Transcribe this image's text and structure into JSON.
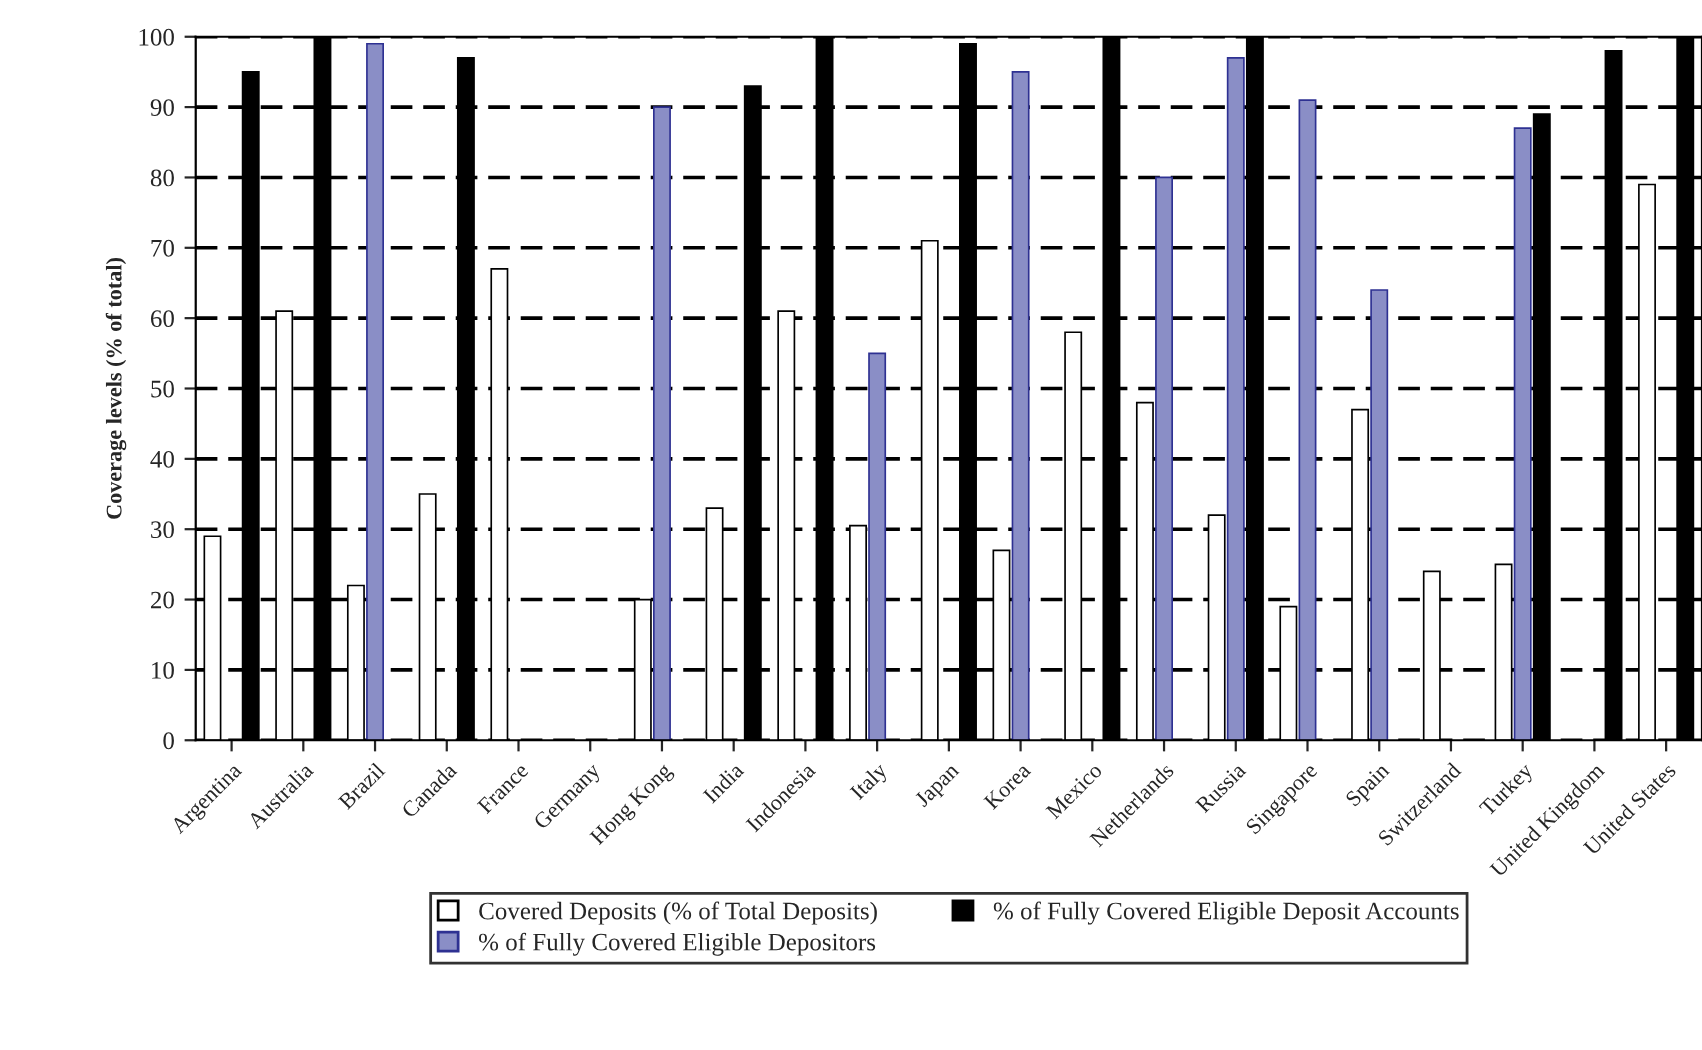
{
  "chart_data": {
    "type": "bar",
    "ylabel": "Coverage levels (% of total)",
    "categories": [
      "Argentina",
      "Australia",
      "Brazil",
      "Canada",
      "France",
      "Germany",
      "Hong Kong",
      "India",
      "Indonesia",
      "Italy",
      "Japan",
      "Korea",
      "Mexico",
      "Netherlands",
      "Russia",
      "Singapore",
      "Spain",
      "Switzerland",
      "Turkey",
      "United Kingdom",
      "United States"
    ],
    "series": [
      {
        "name": "Covered Deposits (% of Total Deposits)",
        "color": "#ffffff",
        "values": [
          29,
          61,
          22,
          35,
          67,
          null,
          20,
          33,
          61,
          30.5,
          71,
          27,
          58,
          48,
          32,
          19,
          47,
          24,
          25,
          null,
          79
        ]
      },
      {
        "name": "% of Fully Covered Eligible Depositors",
        "color": "#8a8ec6",
        "values": [
          null,
          null,
          99,
          null,
          null,
          null,
          90,
          null,
          null,
          55,
          null,
          95,
          null,
          80,
          97,
          91,
          64,
          null,
          87,
          null,
          null
        ]
      },
      {
        "name": "% of Fully Covered Eligible Deposit Accounts",
        "color": "#000000",
        "values": [
          95,
          100,
          null,
          97,
          null,
          null,
          null,
          93,
          100,
          null,
          99,
          null,
          100,
          null,
          100,
          null,
          null,
          null,
          89,
          98,
          100
        ]
      }
    ],
    "ylim": [
      0,
      100
    ],
    "yticks": [
      0,
      10,
      20,
      30,
      40,
      50,
      60,
      70,
      80,
      90,
      100
    ],
    "grid": "y",
    "legend": "bottom"
  }
}
